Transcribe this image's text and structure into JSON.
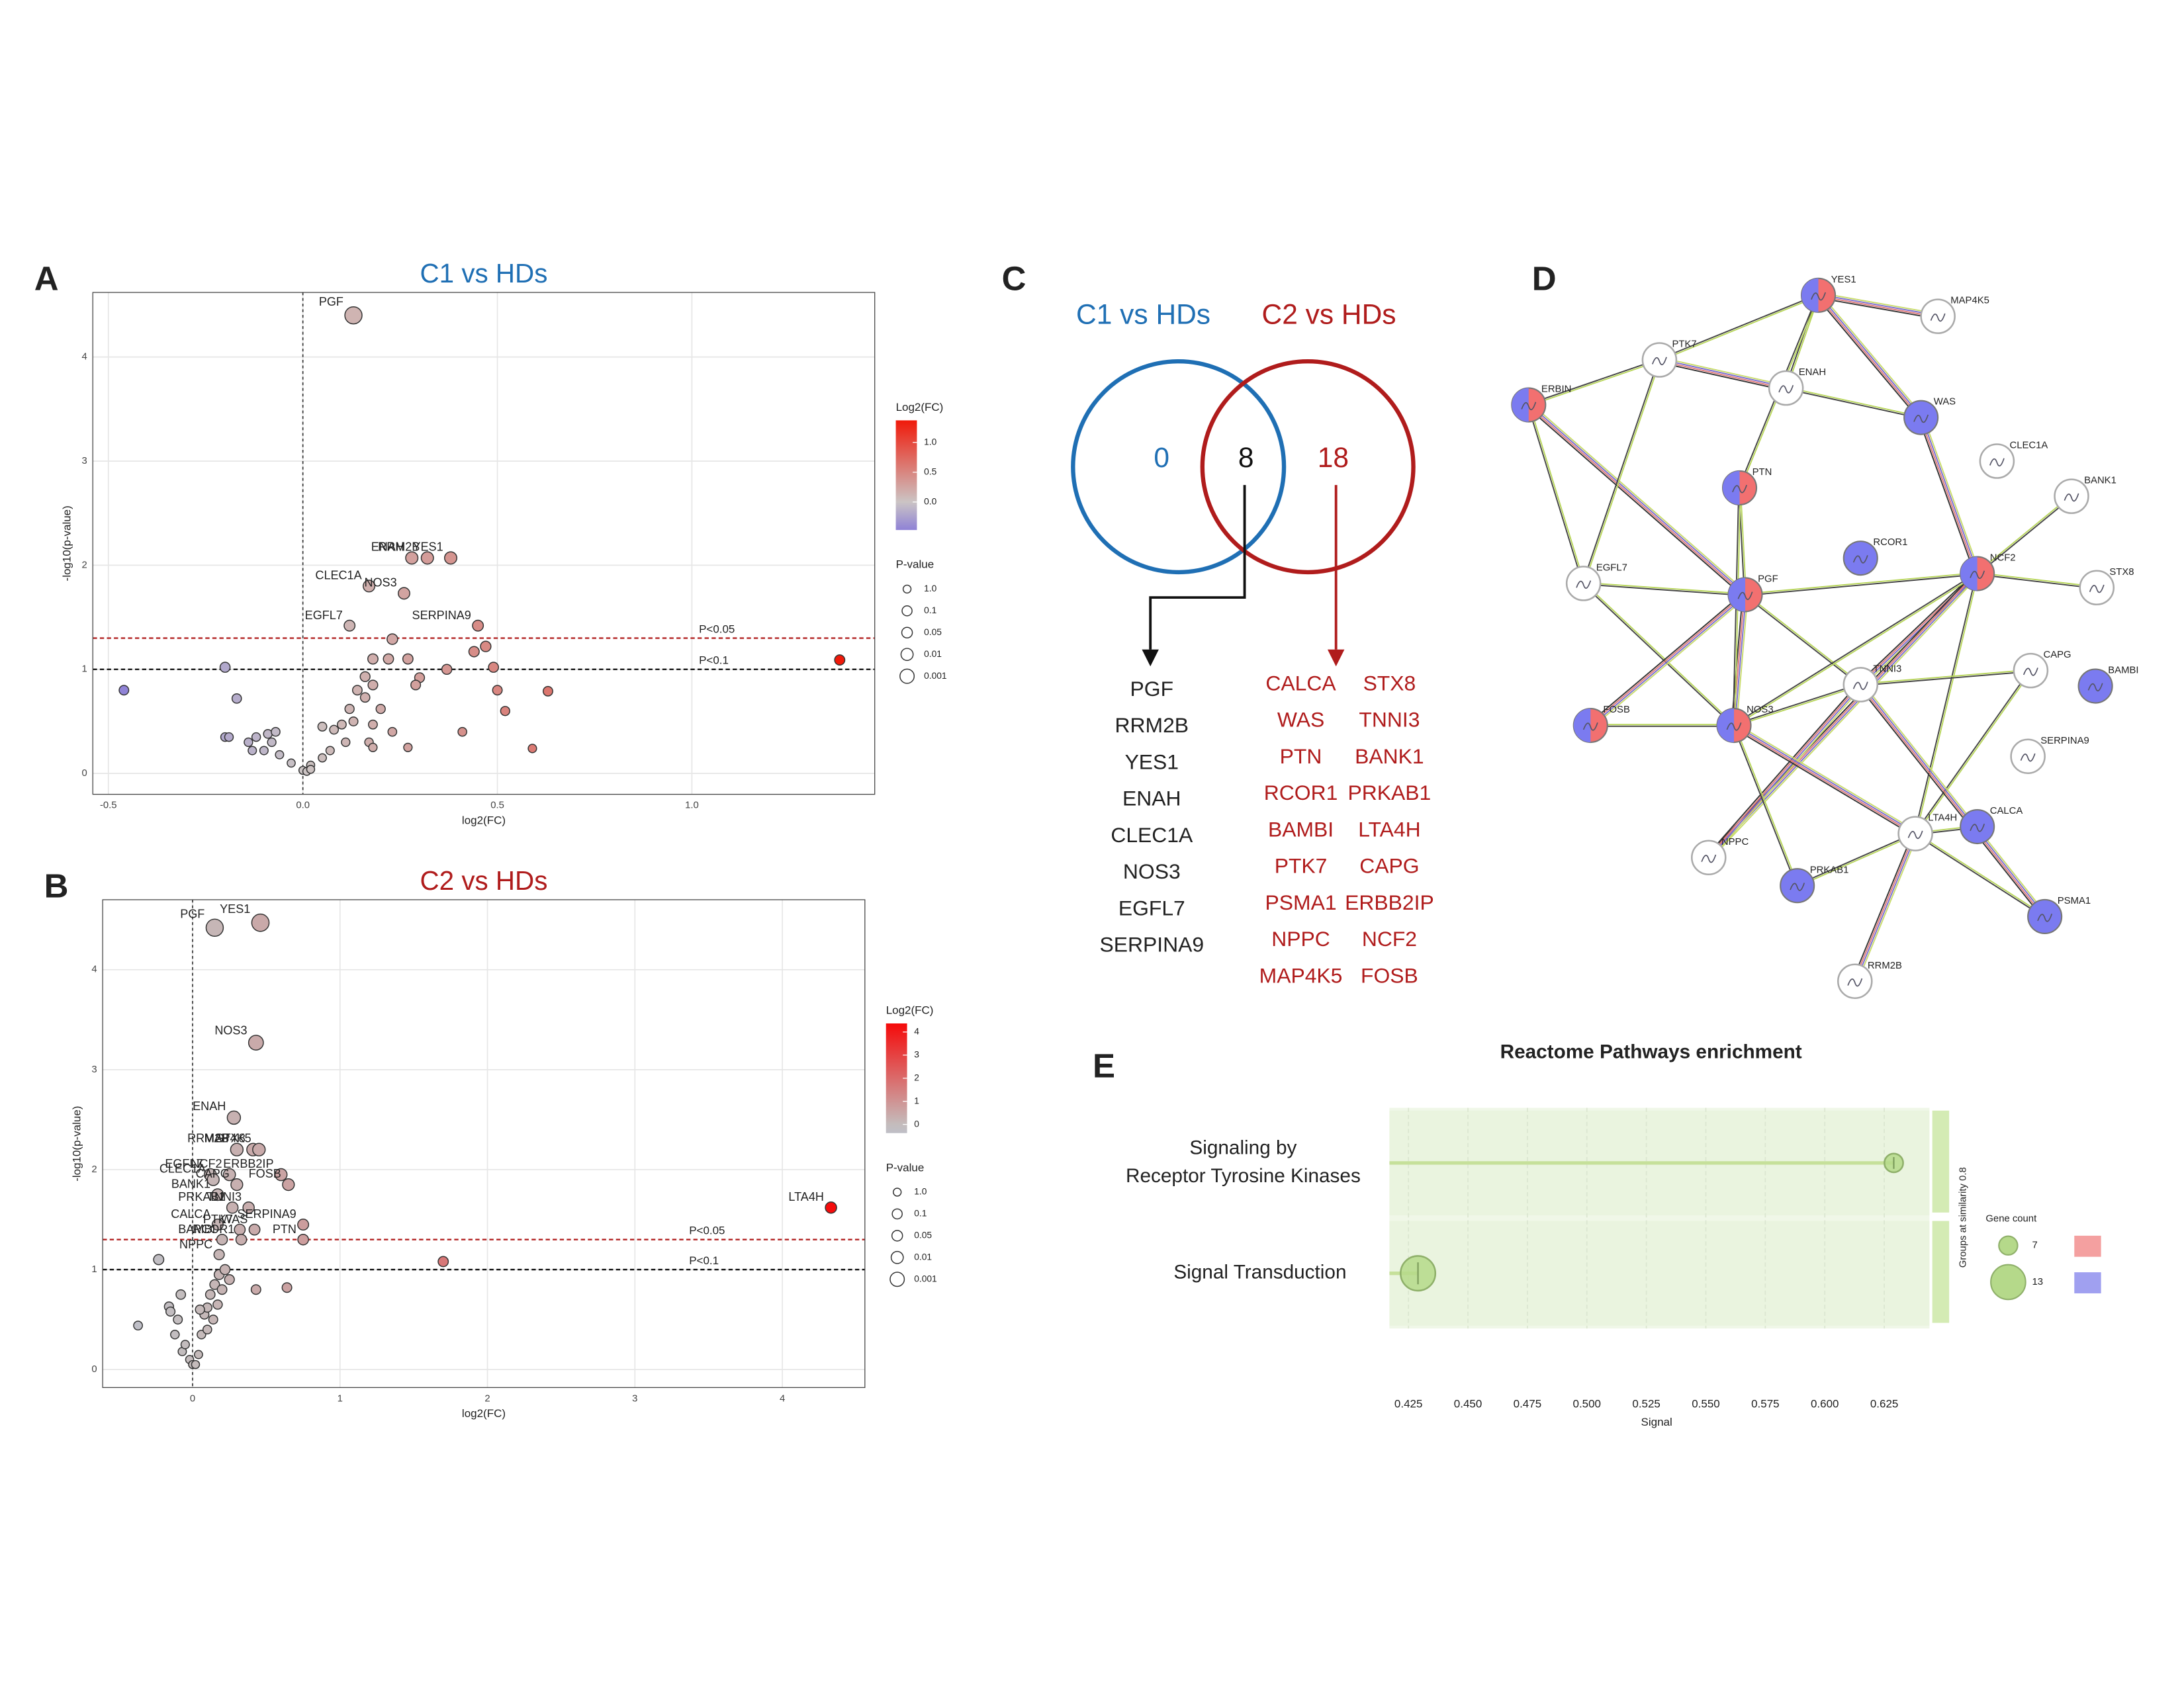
{
  "chart_data": [
    {
      "type": "scatter",
      "panel": "A",
      "title": "C1 vs HDs",
      "title_color": "#1f6fb4",
      "xlabel": "log2(FC)",
      "ylabel": "-log10(p-value)",
      "xlim": [
        -0.54,
        1.47
      ],
      "ylim": [
        -0.2,
        4.62
      ],
      "xticks": [
        -0.5,
        {
          "value": 0,
          "label": "0.0"
        },
        0.5,
        {
          "value": 1,
          "label": "1.0"
        }
      ],
      "yticks": [
        0,
        1,
        2,
        3,
        4
      ],
      "grid": true,
      "vline": 0,
      "hlines": [
        {
          "value": 1.3,
          "label": "P<0.05",
          "color": "#b22222"
        },
        {
          "value": 1,
          "label": "P<0.1",
          "color": "#111111"
        }
      ],
      "x": [
        0.13,
        0.28,
        0.32,
        0.38,
        0.17,
        0.26,
        0.12,
        0.45,
        1.38,
        0.47,
        0.44,
        0.49,
        0.37,
        0.3,
        0.29,
        0.23,
        0.18,
        0.27,
        0.22,
        0.16,
        0.18,
        0.14,
        0.16,
        0.12,
        0.2,
        0.05,
        0.08,
        0.1,
        0.13,
        0.18,
        0.23,
        0.17,
        0.11,
        0.07,
        0.05,
        0.02,
        0.0,
        0.01,
        0.02,
        0.18,
        0.27,
        0.5,
        0.52,
        0.41,
        0.63,
        0.59,
        -0.46,
        -0.2,
        -0.17,
        -0.2,
        -0.19,
        -0.14,
        -0.12,
        -0.09,
        -0.07,
        -0.13,
        -0.1,
        -0.06,
        -0.03,
        -0.08
      ],
      "y": [
        4.4,
        2.07,
        2.07,
        2.07,
        1.8,
        1.73,
        1.42,
        1.42,
        1.09,
        1.22,
        1.17,
        1.02,
        1.0,
        0.92,
        0.85,
        1.29,
        1.1,
        1.1,
        1.1,
        0.93,
        0.85,
        0.8,
        0.73,
        0.62,
        0.62,
        0.45,
        0.42,
        0.47,
        0.5,
        0.47,
        0.4,
        0.3,
        0.3,
        0.22,
        0.15,
        0.08,
        0.03,
        0.02,
        0.04,
        0.25,
        0.25,
        0.8,
        0.6,
        0.4,
        0.79,
        0.24,
        0.8,
        1.02,
        0.72,
        0.35,
        0.35,
        0.3,
        0.35,
        0.38,
        0.4,
        0.22,
        0.22,
        0.18,
        0.1,
        0.3
      ],
      "labels": [
        "PGF",
        "ENAH",
        "RRM2B",
        "YES1",
        "CLEC1A",
        "NOS3",
        "EGFL7",
        "SERPINA9",
        null,
        null,
        null,
        null,
        null,
        null,
        null,
        null,
        null,
        null,
        null,
        null,
        null,
        null,
        null,
        null,
        null,
        null,
        null,
        null,
        null,
        null,
        null,
        null,
        null,
        null,
        null,
        null,
        null,
        null,
        null,
        null,
        null,
        null,
        null,
        null,
        null,
        null,
        null,
        null,
        null,
        null,
        null,
        null,
        null,
        null,
        null,
        null,
        null,
        null,
        null,
        null
      ],
      "color_legend": {
        "title": "Log2(FC)",
        "lim": [
          -0.47,
          1.37
        ],
        "ticks": [
          {
            "value": 1,
            "label": "1.0"
          },
          0.5,
          {
            "value": 0,
            "label": "0.0"
          }
        ],
        "color_stops": [
          [
            -0.47,
            "#8f82d6"
          ],
          [
            0,
            "#cbc4c4"
          ],
          [
            1.37,
            "#f01a0a"
          ]
        ]
      },
      "size_legend": {
        "title": "P-value",
        "values": [
          {
            "value": 1,
            "label": "1.0"
          },
          0.1,
          0.05,
          0.01,
          0.001
        ]
      }
    },
    {
      "type": "scatter",
      "panel": "B",
      "title": "C2 vs HDs",
      "title_color": "#b01c1c",
      "xlabel": "log2(FC)",
      "ylabel": "-log10(p-value)",
      "xlim": [
        -0.61,
        4.56
      ],
      "ylim": [
        -0.18,
        4.7
      ],
      "xticks": [
        0,
        1,
        2,
        3,
        4
      ],
      "yticks": [
        0,
        1,
        2,
        3,
        4
      ],
      "grid": true,
      "vline": 0,
      "hlines": [
        {
          "value": 1.3,
          "label": "P<0.05",
          "color": "#b22222"
        },
        {
          "value": 1,
          "label": "P<0.1",
          "color": "#111111"
        }
      ],
      "x": [
        0.15,
        0.46,
        0.43,
        0.28,
        0.41,
        0.3,
        0.45,
        0.12,
        0.25,
        0.6,
        0.14,
        0.3,
        0.65,
        0.17,
        0.27,
        0.38,
        0.75,
        0.17,
        0.32,
        0.42,
        0.75,
        0.2,
        0.33,
        0.18,
        4.33,
        1.7,
        0.64,
        0.43,
        -0.23,
        -0.37,
        -0.16,
        -0.15,
        -0.1,
        -0.08,
        -0.12,
        -0.07,
        -0.05,
        -0.02,
        0.0,
        0.02,
        0.04,
        0.06,
        0.08,
        0.1,
        0.12,
        0.15,
        0.18,
        0.2,
        0.22,
        0.1,
        0.05,
        0.14,
        0.17,
        0.25
      ],
      "y": [
        4.42,
        4.47,
        3.27,
        2.52,
        2.2,
        2.2,
        2.2,
        1.95,
        1.95,
        1.95,
        1.9,
        1.85,
        1.85,
        1.75,
        1.62,
        1.62,
        1.45,
        1.45,
        1.4,
        1.4,
        1.3,
        1.3,
        1.3,
        1.15,
        1.62,
        1.08,
        0.82,
        0.8,
        1.1,
        0.44,
        0.63,
        0.58,
        0.5,
        0.75,
        0.35,
        0.18,
        0.25,
        0.1,
        0.05,
        0.05,
        0.15,
        0.35,
        0.55,
        0.62,
        0.75,
        0.85,
        0.95,
        0.8,
        1.0,
        0.4,
        0.6,
        0.5,
        0.65,
        0.9
      ],
      "labels": [
        "PGF",
        "YES1",
        "NOS3",
        "ENAH",
        "STX8",
        "RRM2B",
        "MAP4K5",
        "EGFL7",
        "NCF2",
        "ERBB2IP",
        "CLEC1A",
        "CAPG",
        "FOSB",
        "BANK1",
        "PRKAB1",
        "TNNI3",
        "SERPINA9",
        "CALCA",
        "PTK7",
        "WAS",
        "PTN",
        "BAMBI",
        "RCOR1",
        "NPPC",
        "LTA4H",
        null,
        null,
        null,
        null,
        null,
        null,
        null,
        null,
        null,
        null,
        null,
        null,
        null,
        null,
        null,
        null,
        null,
        null,
        null,
        null,
        null,
        null,
        null,
        null,
        null,
        null,
        null,
        null,
        null
      ],
      "color_legend": {
        "title": "Log2(FC)",
        "lim": [
          -0.375,
          4.37
        ],
        "ticks": [
          4,
          3,
          2,
          1,
          0
        ],
        "color_stops": [
          [
            -0.375,
            "#bfbfc7"
          ],
          [
            0,
            "#c4bcbc"
          ],
          [
            4.37,
            "#f50a0a"
          ]
        ]
      },
      "size_legend": {
        "title": "P-value",
        "values": [
          {
            "value": 1,
            "label": "1.0"
          },
          0.1,
          0.05,
          0.01,
          0.001
        ]
      }
    },
    {
      "type": "dotplot",
      "panel": "E",
      "title": "Reactome Pathways enrichment",
      "xlabel": "Signal",
      "categories": [
        [
          "Signaling by",
          "Receptor Tyrosine Kinases"
        ],
        [
          "Signal Transduction"
        ]
      ],
      "values": [
        0.629,
        0.429
      ],
      "sizes": [
        7,
        13
      ],
      "color": "#b5d98a",
      "xlim": [
        0.417,
        0.644
      ],
      "xticks": [
        0.425,
        {
          "value": 0.45,
          "label": "0.450"
        },
        0.475,
        {
          "value": 0.5,
          "label": "0.500"
        },
        0.525,
        {
          "value": 0.55,
          "label": "0.550"
        },
        0.575,
        {
          "value": 0.6,
          "label": "0.600"
        },
        0.625
      ],
      "group_label": "Groups at similarity 0.8",
      "size_legend": {
        "title": "Gene count",
        "values": [
          7,
          13
        ]
      },
      "swatches": [
        "#f4a0a0",
        "#a0a0f0"
      ]
    }
  ],
  "venn": {
    "panel": "C",
    "sets": [
      {
        "name": "C1 vs HDs",
        "color": "#1f6fb4"
      },
      {
        "name": "C2 vs HDs",
        "color": "#b01c1c"
      }
    ],
    "counts": [
      0,
      8,
      18
    ],
    "shared_genes": [
      "PGF",
      "RRM2B",
      "YES1",
      "ENAH",
      "CLEC1A",
      "NOS3",
      "EGFL7",
      "SERPINA9"
    ],
    "c2_genes": [
      "CALCA",
      "WAS",
      "PTN",
      "RCOR1",
      "BAMBI",
      "PTK7",
      "PSMA1",
      "NPPC",
      "MAP4K5",
      "STX8",
      "TNNI3",
      "BANK1",
      "PRKAB1",
      "LTA4H",
      "CAPG",
      "ERBB2IP",
      "NCF2",
      "FOSB"
    ]
  },
  "network": {
    "panel": "D",
    "nodes": [
      "YES1",
      "MAP4K5",
      "PTK7",
      "ENAH",
      "WAS",
      "ERBIN",
      "PTN",
      "CLEC1A",
      "BANK1",
      "RCOR1",
      "NCF2",
      "STX8",
      "EGFL7",
      "PGF",
      "TNNI3",
      "CAPG",
      "BAMBI",
      "FOSB",
      "NOS3",
      "SERPINA9",
      "LTA4H",
      "CALCA",
      "NPPC",
      "PRKAB1",
      "PSMA1",
      "RRM2B"
    ]
  }
}
